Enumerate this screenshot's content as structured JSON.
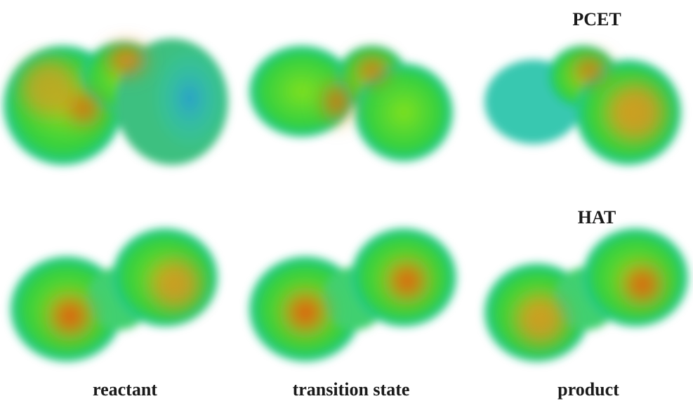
{
  "labels": {
    "row_top": "PCET",
    "row_bottom": "HAT",
    "columns": [
      "reactant",
      "transition state",
      "product"
    ]
  }
}
